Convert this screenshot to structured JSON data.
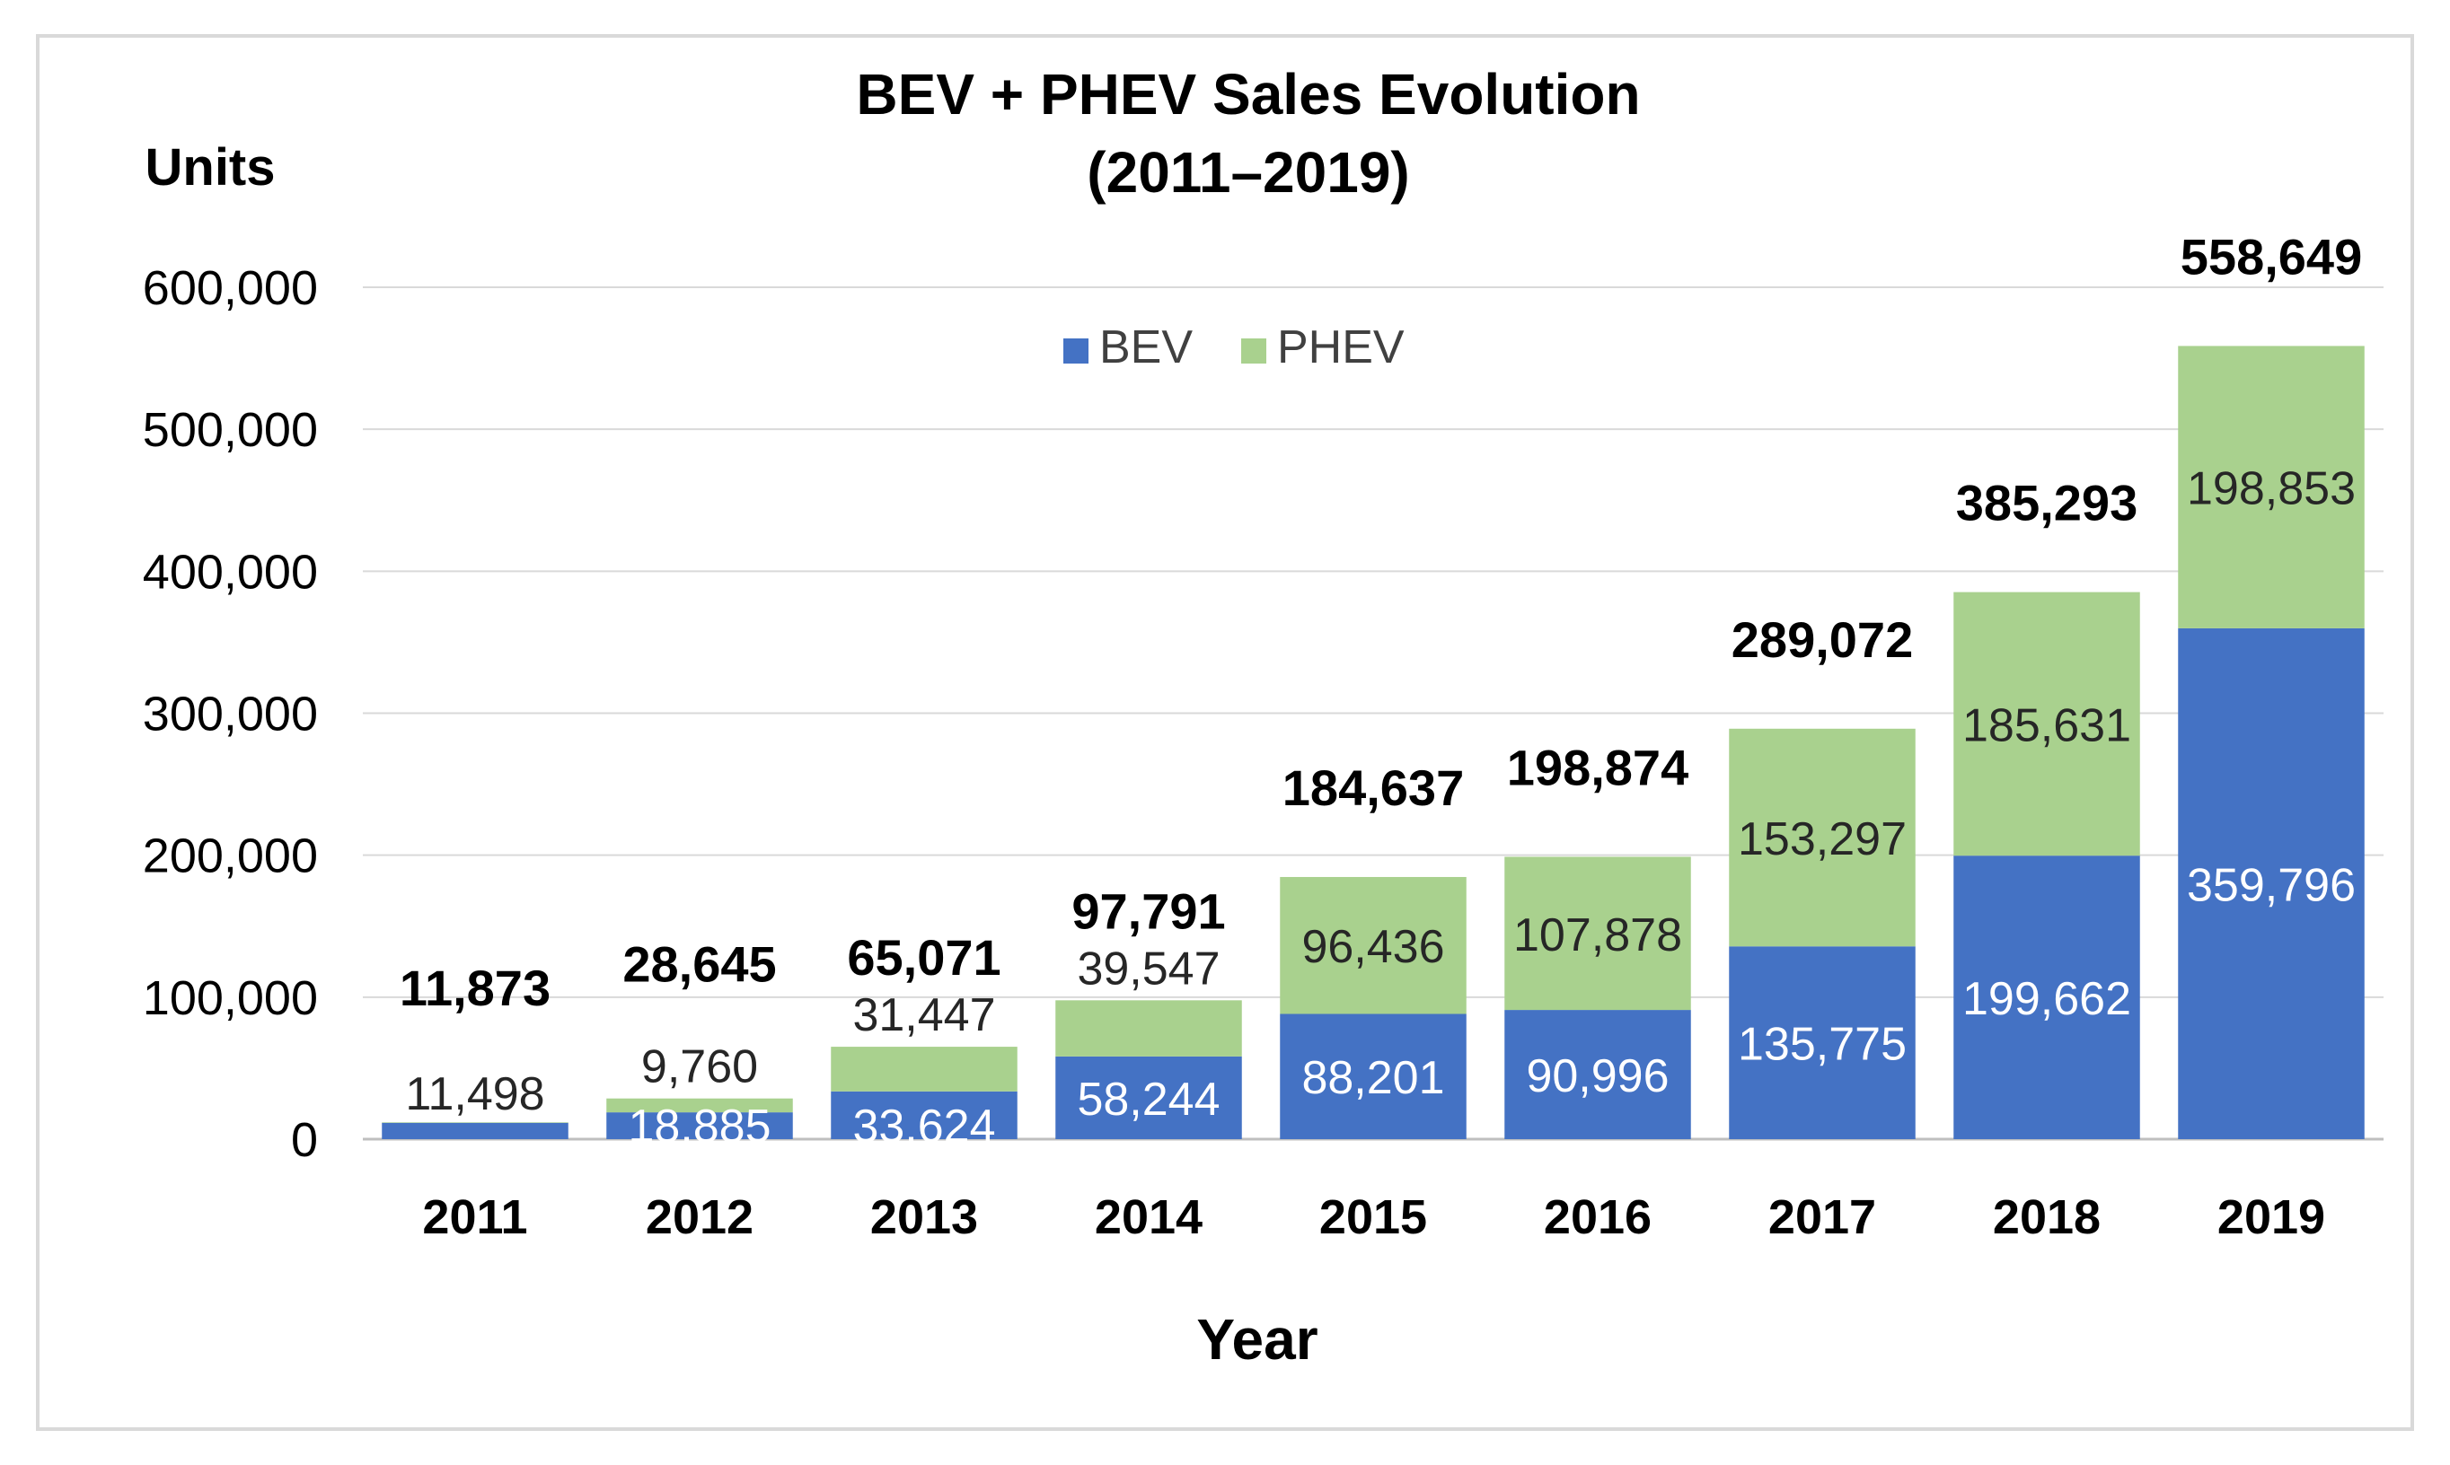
{
  "chart_data": {
    "type": "bar",
    "stacked": true,
    "title_line1": "BEV + PHEV Sales Evolution",
    "title_line2": "(2011–2019)",
    "ylabel": "Units",
    "xlabel": "Year",
    "ylim": [
      0,
      600000
    ],
    "yticks": [
      0,
      100000,
      200000,
      300000,
      400000,
      500000,
      600000
    ],
    "ytick_labels": [
      "0",
      "100,000",
      "200,000",
      "300,000",
      "400,000",
      "500,000",
      "600,000"
    ],
    "grid": true,
    "legend_position": "top-center",
    "categories": [
      "2011",
      "2012",
      "2013",
      "2014",
      "2015",
      "2016",
      "2017",
      "2018",
      "2019"
    ],
    "series": [
      {
        "name": "BEV",
        "color": "#4472c4",
        "values": [
          11498,
          18885,
          33624,
          58244,
          88201,
          90996,
          135775,
          199662,
          359796
        ],
        "value_labels": [
          "11,498",
          "18,885",
          "33,624",
          "58,244",
          "88,201",
          "90,996",
          "135,775",
          "199,662",
          "359,796"
        ]
      },
      {
        "name": "PHEV",
        "color": "#a9d18e",
        "values": [
          375,
          9760,
          31447,
          39547,
          96436,
          107878,
          153297,
          185631,
          198853
        ],
        "value_labels": [
          "",
          "9,760",
          "31,447",
          "39,547",
          "96,436",
          "107,878",
          "153,297",
          "185,631",
          "198,853"
        ]
      }
    ],
    "totals": [
      11873,
      28645,
      65071,
      97791,
      184637,
      198874,
      289072,
      385293,
      558649
    ],
    "total_labels": [
      "11,873",
      "28,645",
      "65,071",
      "97,791",
      "184,637",
      "198,874",
      "289,072",
      "385,293",
      "558,649"
    ]
  }
}
